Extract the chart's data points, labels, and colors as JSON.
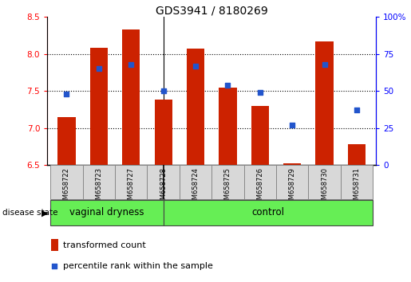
{
  "title": "GDS3941 / 8180269",
  "samples": [
    "GSM658722",
    "GSM658723",
    "GSM658727",
    "GSM658728",
    "GSM658724",
    "GSM658725",
    "GSM658726",
    "GSM658729",
    "GSM658730",
    "GSM658731"
  ],
  "transformed_count": [
    7.15,
    8.08,
    8.33,
    7.38,
    8.07,
    7.55,
    7.3,
    6.52,
    8.17,
    6.78
  ],
  "percentile_rank": [
    48,
    65,
    68,
    50,
    67,
    54,
    49,
    27,
    68,
    37
  ],
  "group1_label": "vaginal dryness",
  "group2_label": "control",
  "group1_count": 4,
  "group2_count": 6,
  "disease_state_label": "disease state",
  "ylim_left": [
    6.5,
    8.5
  ],
  "ylim_right": [
    0,
    100
  ],
  "yticks_left": [
    6.5,
    7.0,
    7.5,
    8.0,
    8.5
  ],
  "yticks_right": [
    0,
    25,
    50,
    75,
    100
  ],
  "ytick_labels_right": [
    "0",
    "25",
    "50",
    "75",
    "100%"
  ],
  "bar_color": "#cc2200",
  "dot_color": "#2255cc",
  "bar_bottom": 6.5,
  "legend_bar_label": "transformed count",
  "legend_dot_label": "percentile rank within the sample",
  "group_bg_color": "#66ee55",
  "tick_label_bg": "#d8d8d8",
  "bar_width": 0.55,
  "grid_dotted_vals": [
    7.0,
    7.5,
    8.0
  ],
  "n_samples": 10,
  "group1_sep": 3.5
}
